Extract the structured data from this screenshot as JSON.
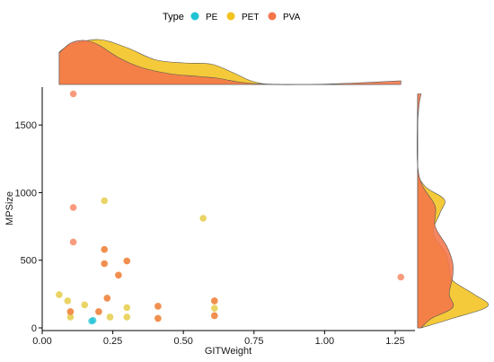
{
  "chart_data": {
    "type": "scatter",
    "title": "",
    "xlabel": "GITWeight",
    "ylabel": "MPSize",
    "xlim": [
      0,
      1.32
    ],
    "ylim": [
      -20,
      1780
    ],
    "x_ticks": [
      0,
      0.25,
      0.5,
      0.75,
      1,
      1.25
    ],
    "x_tick_labels": [
      "0.00",
      "0.25",
      "0.50",
      "0.75",
      "1.00",
      "1.25"
    ],
    "y_ticks": [
      0,
      500,
      1000,
      1500
    ],
    "y_tick_labels": [
      "0",
      "500",
      "1000",
      "1500"
    ],
    "grid": false,
    "legend": {
      "title": "Type",
      "placement": "top",
      "entries": [
        {
          "name": "PE",
          "color": "#1fc3d4"
        },
        {
          "name": "PET",
          "color": "#f2c31f"
        },
        {
          "name": "PVA",
          "color": "#f4754a"
        }
      ]
    },
    "series": [
      {
        "name": "PE",
        "color": "#1fc3d4",
        "points": [
          [
            0.18,
            55
          ],
          [
            0.175,
            50
          ]
        ]
      },
      {
        "name": "PET",
        "color": "#e1c42a",
        "points": [
          [
            0.06,
            245
          ],
          [
            0.09,
            200
          ],
          [
            0.1,
            80
          ],
          [
            0.1,
            120
          ],
          [
            0.15,
            170
          ],
          [
            0.2,
            120
          ],
          [
            0.22,
            940
          ],
          [
            0.22,
            580
          ],
          [
            0.22,
            475
          ],
          [
            0.23,
            220
          ],
          [
            0.24,
            80
          ],
          [
            0.27,
            390
          ],
          [
            0.3,
            150
          ],
          [
            0.3,
            80
          ],
          [
            0.3,
            495
          ],
          [
            0.41,
            160
          ],
          [
            0.41,
            70
          ],
          [
            0.57,
            810
          ],
          [
            0.61,
            200
          ],
          [
            0.61,
            145
          ],
          [
            0.61,
            90
          ]
        ]
      },
      {
        "name": "PVA",
        "color": "#f4754a",
        "points": [
          [
            0.11,
            1730
          ],
          [
            0.11,
            890
          ],
          [
            0.11,
            635
          ],
          [
            0.1,
            120
          ],
          [
            0.2,
            120
          ],
          [
            0.22,
            580
          ],
          [
            0.22,
            475
          ],
          [
            0.23,
            220
          ],
          [
            0.27,
            390
          ],
          [
            0.3,
            495
          ],
          [
            0.41,
            160
          ],
          [
            0.41,
            70
          ],
          [
            0.61,
            200
          ],
          [
            0.61,
            90
          ],
          [
            1.27,
            375
          ]
        ]
      }
    ],
    "marginal_densities": {
      "x": [
        {
          "name": "PET",
          "color": "#f2c31f",
          "points": [
            [
              0.06,
              0.72
            ],
            [
              0.1,
              0.88
            ],
            [
              0.2,
              1.0
            ],
            [
              0.3,
              0.82
            ],
            [
              0.4,
              0.55
            ],
            [
              0.5,
              0.48
            ],
            [
              0.6,
              0.45
            ],
            [
              0.68,
              0.25
            ],
            [
              0.75,
              0.06
            ],
            [
              0.85,
              0.0
            ],
            [
              1.27,
              0.0
            ]
          ]
        },
        {
          "name": "PVA",
          "color": "#f4754a",
          "points": [
            [
              0.06,
              0.7
            ],
            [
              0.1,
              0.92
            ],
            [
              0.15,
              0.98
            ],
            [
              0.2,
              0.88
            ],
            [
              0.27,
              0.6
            ],
            [
              0.35,
              0.38
            ],
            [
              0.45,
              0.24
            ],
            [
              0.55,
              0.18
            ],
            [
              0.62,
              0.14
            ],
            [
              0.7,
              0.05
            ],
            [
              0.8,
              0.0
            ],
            [
              0.95,
              0.0
            ],
            [
              1.1,
              0.03
            ],
            [
              1.27,
              0.08
            ]
          ]
        }
      ],
      "y": [
        {
          "name": "PET",
          "color": "#f2c31f",
          "points": [
            [
              0,
              0.05
            ],
            [
              70,
              0.5
            ],
            [
              160,
              1.0
            ],
            [
              250,
              0.8
            ],
            [
              350,
              0.5
            ],
            [
              450,
              0.45
            ],
            [
              550,
              0.4
            ],
            [
              700,
              0.22
            ],
            [
              850,
              0.32
            ],
            [
              950,
              0.38
            ],
            [
              1050,
              0.1
            ],
            [
              1200,
              0.0
            ],
            [
              1730,
              0.0
            ]
          ]
        },
        {
          "name": "PVA",
          "color": "#f4754a",
          "points": [
            [
              0,
              0.05
            ],
            [
              70,
              0.2
            ],
            [
              150,
              0.5
            ],
            [
              250,
              0.45
            ],
            [
              380,
              0.5
            ],
            [
              480,
              0.5
            ],
            [
              600,
              0.42
            ],
            [
              750,
              0.25
            ],
            [
              900,
              0.25
            ],
            [
              1050,
              0.07
            ],
            [
              1200,
              0.0
            ],
            [
              1500,
              0.0
            ],
            [
              1650,
              0.02
            ],
            [
              1730,
              0.05
            ]
          ]
        }
      ]
    }
  }
}
